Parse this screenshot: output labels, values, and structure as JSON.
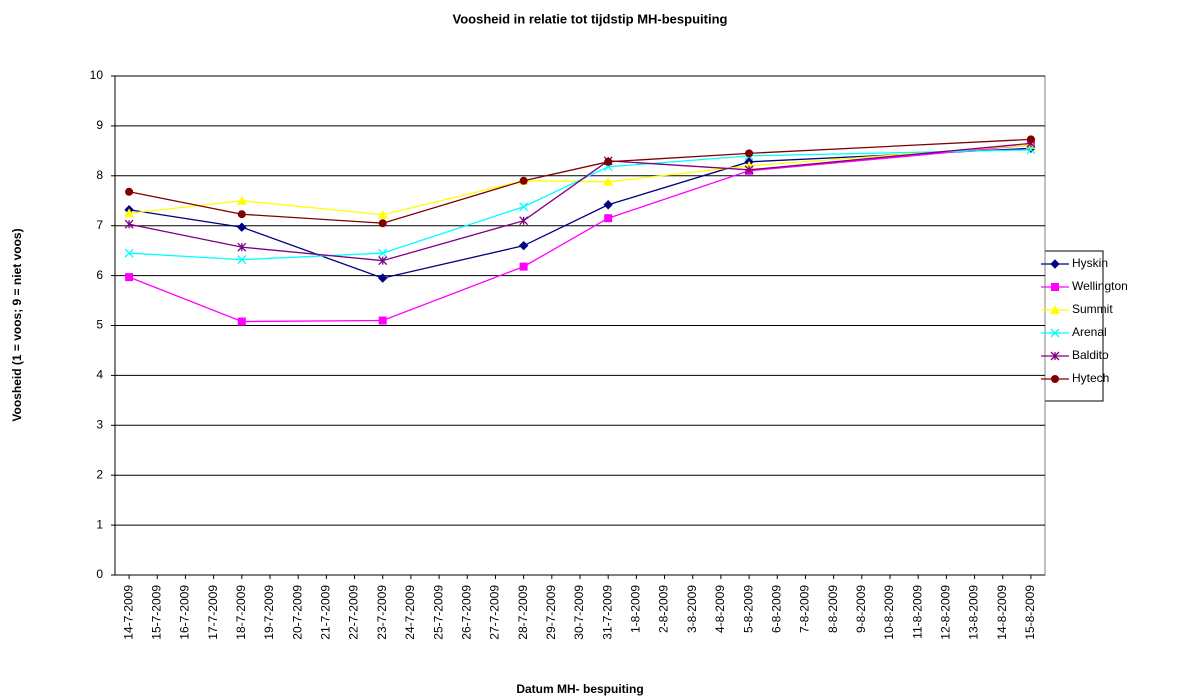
{
  "chart_data": {
    "type": "line",
    "title": "Voosheid in relatie tot tijdstip MH-bespuiting",
    "x_label": "Datum MH- bespuiting",
    "y_label": "Voosheid (1 = voos; 9 = niet voos)",
    "x": [
      "14-7-2009",
      "18-7-2009",
      "23-7-2009",
      "28-7-2009",
      "31-7-2009",
      "5-8-2009",
      "15-8-2009"
    ],
    "xticks": [
      "14-7-2009",
      "15-7-2009",
      "16-7-2009",
      "17-7-2009",
      "18-7-2009",
      "19-7-2009",
      "20-7-2009",
      "21-7-2009",
      "22-7-2009",
      "23-7-2009",
      "24-7-2009",
      "25-7-2009",
      "26-7-2009",
      "27-7-2009",
      "28-7-2009",
      "29-7-2009",
      "30-7-2009",
      "31-7-2009",
      "1-8-2009",
      "2-8-2009",
      "3-8-2009",
      "4-8-2009",
      "5-8-2009",
      "6-8-2009",
      "7-8-2009",
      "8-8-2009",
      "9-8-2009",
      "10-8-2009",
      "11-8-2009",
      "12-8-2009",
      "13-8-2009",
      "14-8-2009",
      "15-8-2009"
    ],
    "ylim": [
      0,
      10
    ],
    "yticks": [
      0,
      1,
      2,
      3,
      4,
      5,
      6,
      7,
      8,
      9,
      10
    ],
    "grid": true,
    "legend": "right",
    "series": [
      {
        "name": "Hyskin",
        "color": "#000080",
        "marker": "diamond",
        "values": [
          7.32,
          6.97,
          5.95,
          6.6,
          7.42,
          8.28,
          8.55
        ]
      },
      {
        "name": "Wellington",
        "color": "#ff00ff",
        "marker": "square",
        "values": [
          5.97,
          5.08,
          5.1,
          6.18,
          7.15,
          8.1,
          8.62
        ]
      },
      {
        "name": "Summit",
        "color": "#ffff00",
        "marker": "triangle",
        "values": [
          7.25,
          7.5,
          7.22,
          7.9,
          7.88,
          8.2,
          8.62
        ]
      },
      {
        "name": "Arenal",
        "color": "#00ffff",
        "marker": "x",
        "values": [
          6.45,
          6.32,
          6.45,
          7.38,
          8.18,
          8.4,
          8.52
        ]
      },
      {
        "name": "Baldito",
        "color": "#800080",
        "marker": "star",
        "values": [
          7.03,
          6.57,
          6.3,
          7.1,
          8.3,
          8.12,
          8.65
        ]
      },
      {
        "name": "Hytech",
        "color": "#800000",
        "marker": "circle",
        "values": [
          7.68,
          7.23,
          7.05,
          7.9,
          8.28,
          8.45,
          8.73
        ]
      }
    ]
  }
}
